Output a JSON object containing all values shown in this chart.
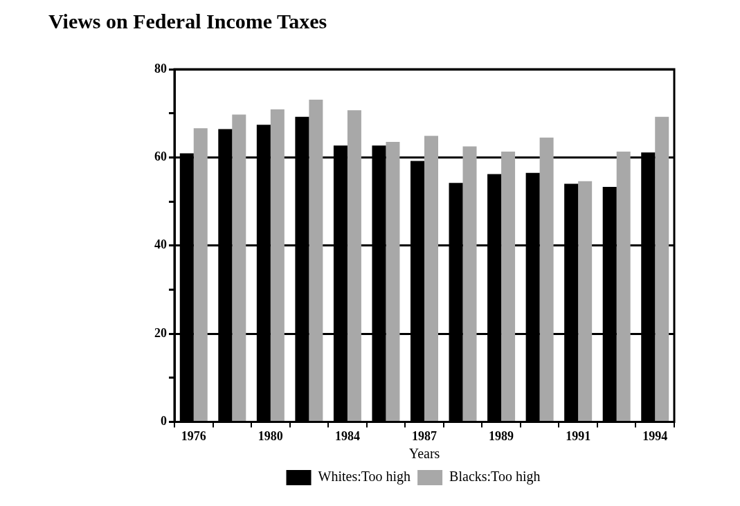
{
  "chart_data": {
    "type": "bar",
    "title": "Views on Federal Income Taxes",
    "xlabel": "Years",
    "categories": [
      "1976",
      null,
      "1980",
      null,
      "1984",
      null,
      "1987",
      null,
      "1989",
      null,
      "1991",
      null,
      "1994"
    ],
    "series": [
      {
        "name": "Whites:Too high",
        "color": "#000000",
        "values": [
          60.9,
          66.4,
          67.4,
          69.2,
          62.7,
          62.7,
          59.2,
          54.2,
          56.2,
          56.5,
          54.0,
          53.3,
          61.1
        ]
      },
      {
        "name": "Blacks:Too high",
        "color": "#a8a8a8",
        "values": [
          66.6,
          69.7,
          70.9,
          73.1,
          70.7,
          63.5,
          64.9,
          62.5,
          61.3,
          64.5,
          54.6,
          61.3,
          69.2
        ]
      }
    ],
    "ylim": [
      0,
      80
    ],
    "yticks": [
      0,
      {
        "value": 10,
        "label": null
      },
      20,
      {
        "value": 30,
        "label": null
      },
      40,
      {
        "value": 50,
        "label": null
      },
      60,
      {
        "value": 70,
        "label": null
      },
      80
    ],
    "grid": "y",
    "legend": "bottom"
  }
}
